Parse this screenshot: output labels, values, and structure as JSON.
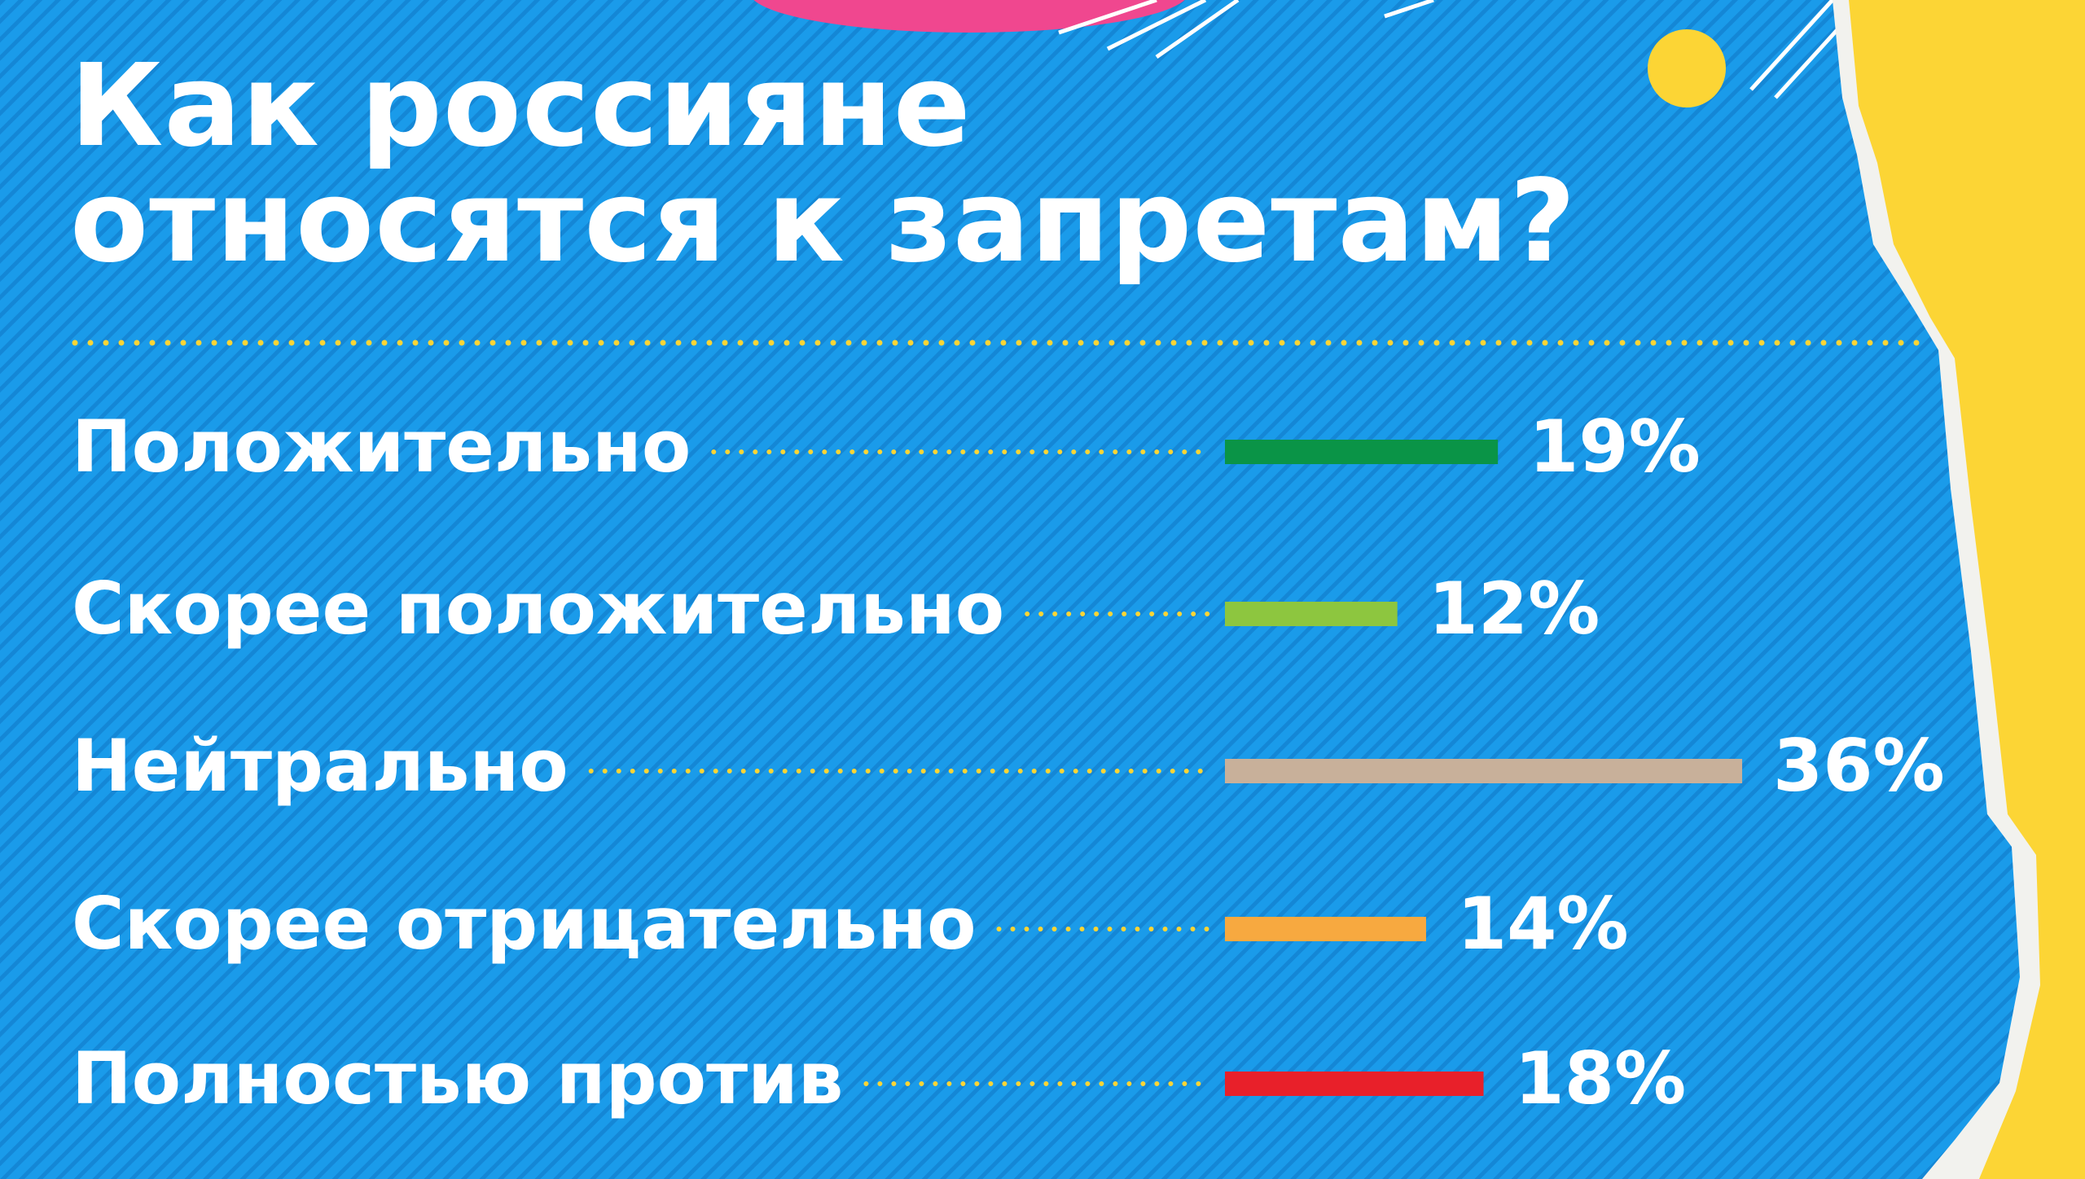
{
  "chart_data": {
    "type": "hbar",
    "title": "Как россияне\nотносятся к запретам?",
    "categories": [
      "Положительно",
      "Скорее положительно",
      "Нейтрально",
      "Скорее отрицательно",
      "Полностью против"
    ],
    "values": [
      19,
      12,
      36,
      14,
      18
    ],
    "value_labels": [
      "19%",
      "12%",
      "36%",
      "14%",
      "18%"
    ],
    "colors": [
      "#0a9447",
      "#8dc63f",
      "#c8b09a",
      "#f7a940",
      "#e8202a"
    ]
  }
}
